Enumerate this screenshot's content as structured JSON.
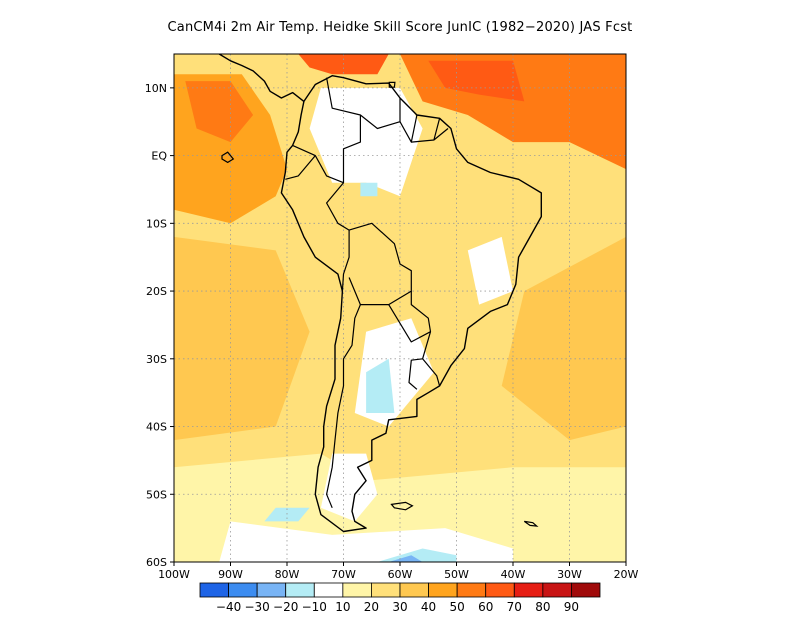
{
  "title": "CanCM4i  2m Air Temp. Heidke Skill Score JunIC (1982−2020) JAS Fcst",
  "map": {
    "lon_range": [
      -100,
      -20
    ],
    "lat_range": [
      -60,
      15
    ],
    "lat_ticks": [
      {
        "value": 10,
        "label": "10N"
      },
      {
        "value": 0,
        "label": "EQ"
      },
      {
        "value": -10,
        "label": "10S"
      },
      {
        "value": -20,
        "label": "20S"
      },
      {
        "value": -30,
        "label": "30S"
      },
      {
        "value": -40,
        "label": "40S"
      },
      {
        "value": -50,
        "label": "50S"
      },
      {
        "value": -60,
        "label": "60S"
      }
    ],
    "lon_ticks": [
      {
        "value": -100,
        "label": "100W"
      },
      {
        "value": -90,
        "label": "90W"
      },
      {
        "value": -80,
        "label": "80W"
      },
      {
        "value": -70,
        "label": "70W"
      },
      {
        "value": -60,
        "label": "60W"
      },
      {
        "value": -50,
        "label": "50W"
      },
      {
        "value": -40,
        "label": "40W"
      },
      {
        "value": -30,
        "label": "30W"
      },
      {
        "value": -20,
        "label": "20W"
      }
    ]
  },
  "colorbar": {
    "colors": [
      "#1e64e6",
      "#3c8cf0",
      "#78b4f5",
      "#b4ecf5",
      "#ffffff",
      "#fff5a8",
      "#ffe07a",
      "#ffc850",
      "#ffa41e",
      "#ff7a14",
      "#ff5a14",
      "#e61e14",
      "#c81414",
      "#a00a0a"
    ],
    "labels": [
      "−40",
      "−30",
      "−20",
      "−10",
      "10",
      "20",
      "30",
      "40",
      "50",
      "60",
      "70",
      "80",
      "90"
    ]
  },
  "field_regions": [
    {
      "name": "east-pacific-orange",
      "level": 40,
      "color": "#ffa41e",
      "polygon": [
        [
          -100,
          12
        ],
        [
          -88,
          12
        ],
        [
          -83,
          6
        ],
        [
          -80,
          -2
        ],
        [
          -82,
          -6
        ],
        [
          -90,
          -10
        ],
        [
          -100,
          -8
        ]
      ]
    },
    {
      "name": "east-pacific-dark",
      "level": 50,
      "color": "#ff7a14",
      "polygon": [
        [
          -98,
          11
        ],
        [
          -90,
          11
        ],
        [
          -86,
          6
        ],
        [
          -90,
          2
        ],
        [
          -96,
          4
        ]
      ]
    },
    {
      "name": "tropical-atlantic-orange",
      "level": 50,
      "color": "#ff7a14",
      "polygon": [
        [
          -60,
          15
        ],
        [
          -20,
          15
        ],
        [
          -20,
          -2
        ],
        [
          -30,
          2
        ],
        [
          -40,
          2
        ],
        [
          -48,
          6
        ],
        [
          -56,
          8
        ]
      ]
    },
    {
      "name": "caribbean-red",
      "level": 60,
      "color": "#ff5a14",
      "polygon": [
        [
          -78,
          15
        ],
        [
          -62,
          15
        ],
        [
          -64,
          12
        ],
        [
          -72,
          12
        ],
        [
          -76,
          13
        ]
      ]
    },
    {
      "name": "atlantic-red",
      "level": 60,
      "color": "#ff5a14",
      "polygon": [
        [
          -55,
          14
        ],
        [
          -40,
          14
        ],
        [
          -38,
          8
        ],
        [
          -46,
          9
        ],
        [
          -52,
          10
        ]
      ]
    },
    {
      "name": "south-atlantic-orange",
      "level": 40,
      "color": "#ffc850",
      "polygon": [
        [
          -38,
          -20
        ],
        [
          -20,
          -12
        ],
        [
          -20,
          -40
        ],
        [
          -30,
          -42
        ],
        [
          -42,
          -34
        ]
      ]
    },
    {
      "name": "southeast-pacific-orange",
      "level": 40,
      "color": "#ffc850",
      "polygon": [
        [
          -100,
          -12
        ],
        [
          -82,
          -14
        ],
        [
          -76,
          -26
        ],
        [
          -82,
          -40
        ],
        [
          -100,
          -42
        ]
      ]
    },
    {
      "name": "south-ocean-pale",
      "level": 10,
      "color": "#fff5a8",
      "polygon": [
        [
          -100,
          -46
        ],
        [
          -74,
          -44
        ],
        [
          -66,
          -48
        ],
        [
          -40,
          -46
        ],
        [
          -20,
          -46
        ],
        [
          -20,
          -60
        ],
        [
          -100,
          -60
        ]
      ]
    },
    {
      "name": "weddell-white",
      "level": 0,
      "color": "#ffffff",
      "polygon": [
        [
          -90,
          -54
        ],
        [
          -72,
          -56
        ],
        [
          -52,
          -55
        ],
        [
          -40,
          -58
        ],
        [
          -40,
          -60
        ],
        [
          -92,
          -60
        ]
      ]
    },
    {
      "name": "drake-blue",
      "level": -10,
      "color": "#b4ecf5",
      "polygon": [
        [
          -64,
          -60
        ],
        [
          -56,
          -58
        ],
        [
          -50,
          -59
        ],
        [
          -50,
          -60
        ]
      ]
    },
    {
      "name": "drake-blue-dark",
      "level": -20,
      "color": "#78b4f5",
      "polygon": [
        [
          -62,
          -60
        ],
        [
          -58,
          -59
        ],
        [
          -56,
          -60
        ]
      ]
    },
    {
      "name": "west-pacific-blue",
      "level": -10,
      "color": "#b4ecf5",
      "polygon": [
        [
          -82,
          -52
        ],
        [
          -76,
          -52
        ],
        [
          -78,
          -54
        ],
        [
          -84,
          -54
        ]
      ]
    },
    {
      "name": "amazon-white",
      "level": 0,
      "color": "#ffffff",
      "polygon": [
        [
          -74,
          10
        ],
        [
          -60,
          10
        ],
        [
          -56,
          4
        ],
        [
          -60,
          -6
        ],
        [
          -66,
          -4
        ],
        [
          -72,
          -4
        ],
        [
          -76,
          4
        ]
      ]
    },
    {
      "name": "amazon-blue",
      "level": -10,
      "color": "#b4ecf5",
      "polygon": [
        [
          -67,
          -4
        ],
        [
          -64,
          -4
        ],
        [
          -64,
          -6
        ],
        [
          -67,
          -6
        ]
      ]
    },
    {
      "name": "south-brazil-white",
      "level": 0,
      "color": "#ffffff",
      "polygon": [
        [
          -66,
          -26
        ],
        [
          -58,
          -24
        ],
        [
          -54,
          -32
        ],
        [
          -62,
          -40
        ],
        [
          -68,
          -38
        ]
      ]
    },
    {
      "name": "pampas-blue",
      "level": -10,
      "color": "#b4ecf5",
      "polygon": [
        [
          -66,
          -32
        ],
        [
          -62,
          -30
        ],
        [
          -61,
          -38
        ],
        [
          -66,
          -38
        ]
      ]
    },
    {
      "name": "northeast-brazil-white",
      "level": 0,
      "color": "#ffffff",
      "polygon": [
        [
          -48,
          -14
        ],
        [
          -42,
          -12
        ],
        [
          -40,
          -20
        ],
        [
          -46,
          -22
        ]
      ]
    },
    {
      "name": "patagonia-white",
      "level": 0,
      "color": "#ffffff",
      "polygon": [
        [
          -72,
          -44
        ],
        [
          -66,
          -44
        ],
        [
          -64,
          -50
        ],
        [
          -68,
          -54
        ],
        [
          -74,
          -52
        ]
      ]
    }
  ],
  "coastline": [
    [
      -77,
      8
    ],
    [
      -75,
      10.5
    ],
    [
      -72,
      11.8
    ],
    [
      -70,
      11.5
    ],
    [
      -66,
      10.6
    ],
    [
      -62,
      10.7
    ],
    [
      -60,
      8.5
    ],
    [
      -57,
      6
    ],
    [
      -53,
      5.5
    ],
    [
      -51,
      4
    ],
    [
      -50,
      1
    ],
    [
      -48,
      -1
    ],
    [
      -44,
      -2.5
    ],
    [
      -39,
      -3.5
    ],
    [
      -35,
      -5.5
    ],
    [
      -35,
      -9
    ],
    [
      -37,
      -12
    ],
    [
      -39,
      -15
    ],
    [
      -39.5,
      -19
    ],
    [
      -41,
      -22
    ],
    [
      -44,
      -23
    ],
    [
      -48,
      -25.5
    ],
    [
      -48.6,
      -28.5
    ],
    [
      -51,
      -31
    ],
    [
      -53,
      -34
    ],
    [
      -55,
      -35
    ],
    [
      -57,
      -36
    ],
    [
      -57,
      -38.5
    ],
    [
      -62,
      -39
    ],
    [
      -62.5,
      -41
    ],
    [
      -65,
      -42
    ],
    [
      -65,
      -45
    ],
    [
      -67.5,
      -46
    ],
    [
      -66,
      -48
    ],
    [
      -68,
      -50
    ],
    [
      -68.5,
      -52.5
    ],
    [
      -68,
      -54
    ],
    [
      -66,
      -55
    ],
    [
      -70,
      -55.5
    ],
    [
      -74,
      -53
    ],
    [
      -75,
      -50
    ],
    [
      -74.5,
      -46
    ],
    [
      -73.5,
      -43
    ],
    [
      -73.5,
      -40
    ],
    [
      -73,
      -37
    ],
    [
      -71.5,
      -33
    ],
    [
      -71.5,
      -28
    ],
    [
      -70.5,
      -24
    ],
    [
      -70.2,
      -20
    ],
    [
      -71,
      -17.5
    ],
    [
      -75,
      -15
    ],
    [
      -77,
      -12
    ],
    [
      -79,
      -8
    ],
    [
      -81,
      -5.5
    ],
    [
      -80.3,
      -2.5
    ],
    [
      -80,
      0.5
    ],
    [
      -79,
      1.5
    ],
    [
      -78,
      3.5
    ],
    [
      -77.5,
      6
    ],
    [
      -77,
      8
    ]
  ],
  "central_america": [
    [
      -77,
      8
    ],
    [
      -79,
      9.3
    ],
    [
      -81,
      8.5
    ],
    [
      -83,
      9.5
    ],
    [
      -84,
      11
    ],
    [
      -86,
      12.5
    ],
    [
      -88,
      13.3
    ],
    [
      -90,
      14
    ],
    [
      -92,
      15
    ]
  ],
  "borders": [
    [
      [
        -73,
        11.5
      ],
      [
        -72,
        7
      ],
      [
        -67,
        6
      ],
      [
        -67,
        2
      ],
      [
        -70,
        1
      ],
      [
        -70,
        -4
      ],
      [
        -73,
        -3
      ],
      [
        -75,
        0
      ],
      [
        -79,
        1.5
      ]
    ],
    [
      [
        -67,
        6
      ],
      [
        -64,
        4
      ],
      [
        -60,
        5
      ],
      [
        -60,
        8.5
      ]
    ],
    [
      [
        -60,
        5
      ],
      [
        -58,
        2
      ],
      [
        -57,
        6
      ]
    ],
    [
      [
        -58,
        2
      ],
      [
        -54,
        2.3
      ],
      [
        -53,
        5.5
      ]
    ],
    [
      [
        -54,
        2.3
      ],
      [
        -51.5,
        4
      ]
    ],
    [
      [
        -75,
        0
      ],
      [
        -78,
        -3
      ],
      [
        -80.3,
        -3.5
      ]
    ],
    [
      [
        -70,
        -4
      ],
      [
        -73,
        -7
      ],
      [
        -71,
        -10
      ],
      [
        -69,
        -11
      ],
      [
        -69,
        -15
      ],
      [
        -70,
        -17.5
      ],
      [
        -70.2,
        -20
      ]
    ],
    [
      [
        -69,
        -11
      ],
      [
        -65,
        -10
      ],
      [
        -61,
        -13
      ],
      [
        -60,
        -16
      ],
      [
        -58,
        -17
      ],
      [
        -58,
        -20
      ],
      [
        -62,
        -22
      ],
      [
        -67,
        -22
      ],
      [
        -69,
        -18
      ]
    ],
    [
      [
        -67,
        -22
      ],
      [
        -68,
        -24
      ],
      [
        -68.5,
        -28
      ],
      [
        -70,
        -30
      ],
      [
        -70,
        -34
      ],
      [
        -71,
        -38
      ],
      [
        -71.5,
        -42
      ],
      [
        -72,
        -46
      ],
      [
        -73,
        -50
      ],
      [
        -72,
        -52
      ]
    ],
    [
      [
        -58,
        -20
      ],
      [
        -58,
        -22
      ],
      [
        -55,
        -24
      ],
      [
        -54.6,
        -26
      ],
      [
        -58,
        -27.5
      ],
      [
        -62,
        -22
      ]
    ],
    [
      [
        -54.6,
        -26
      ],
      [
        -56,
        -30
      ],
      [
        -58,
        -30.2
      ],
      [
        -58.4,
        -33.5
      ],
      [
        -57,
        -34.5
      ]
    ],
    [
      [
        -56,
        -30
      ],
      [
        -53.5,
        -32.5
      ],
      [
        -53,
        -34
      ]
    ]
  ],
  "islands": [
    {
      "name": "galapagos",
      "points": [
        [
          -91.5,
          0
        ],
        [
          -90.5,
          0.5
        ],
        [
          -89.5,
          -0.5
        ],
        [
          -90.5,
          -1
        ],
        [
          -91.5,
          -0.5
        ]
      ]
    },
    {
      "name": "falklands",
      "points": [
        [
          -61.5,
          -51.5
        ],
        [
          -59,
          -51.2
        ],
        [
          -57.8,
          -51.7
        ],
        [
          -59,
          -52.3
        ],
        [
          -61,
          -52
        ]
      ]
    },
    {
      "name": "south-georgia",
      "points": [
        [
          -38,
          -54
        ],
        [
          -36.5,
          -54.2
        ],
        [
          -35.8,
          -54.7
        ],
        [
          -37,
          -54.6
        ]
      ]
    },
    {
      "name": "trinidad",
      "points": [
        [
          -61.9,
          10.8
        ],
        [
          -60.9,
          10.8
        ],
        [
          -61,
          10.1
        ],
        [
          -61.9,
          10.1
        ]
      ]
    }
  ]
}
